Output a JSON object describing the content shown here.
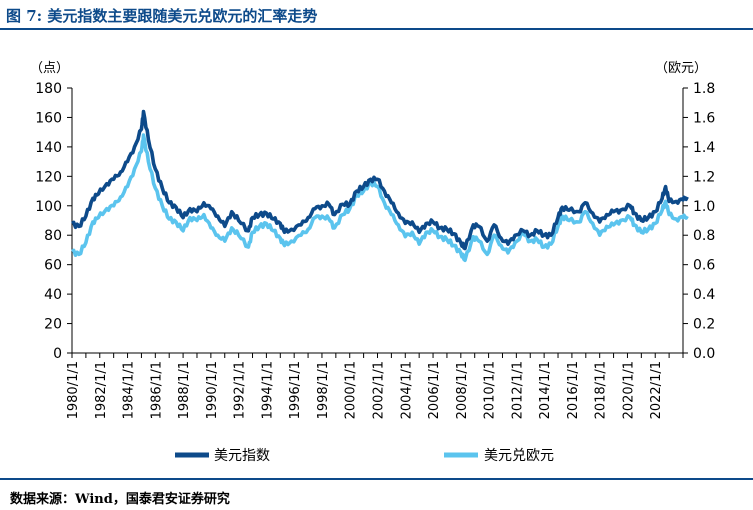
{
  "header": {
    "title": "图 7:  美元指数主要跟随美元兑欧元的汇率走势"
  },
  "footer": {
    "source": "数据来源：Wind，国泰君安证券研究"
  },
  "chart_data": {
    "type": "line",
    "title": "",
    "xlabel": "",
    "left_axis": {
      "unit_label": "（点）",
      "ylim": [
        0,
        180
      ],
      "ticks": [
        "0",
        "20",
        "40",
        "60",
        "80",
        "100",
        "120",
        "140",
        "160",
        "180"
      ]
    },
    "right_axis": {
      "unit_label": "（欧元）",
      "ylim": [
        0.0,
        1.8
      ],
      "ticks": [
        "0.0",
        "0.2",
        "0.4",
        "0.6",
        "0.8",
        "1.0",
        "1.2",
        "1.4",
        "1.6",
        "1.8"
      ]
    },
    "x_tick_labels": [
      "1980/1/1",
      "1982/1/1",
      "1984/1/1",
      "1986/1/1",
      "1988/1/1",
      "1990/1/1",
      "1992/1/1",
      "1994/1/1",
      "1996/1/1",
      "1998/1/1",
      "2000/1/1",
      "2002/1/1",
      "2004/1/1",
      "2006/1/1",
      "2008/1/1",
      "2010/1/1",
      "2012/1/1",
      "2014/1/1",
      "2016/1/1",
      "2018/1/1",
      "2020/1/1",
      "2022/1/1"
    ],
    "x_start_year": 1980,
    "x_end_year": 2024,
    "grid": false,
    "legend_position": "bottom",
    "series": [
      {
        "name": "美元指数",
        "axis": "left",
        "color": "#0d4a8a",
        "points": [
          [
            1980.0,
            88
          ],
          [
            1980.5,
            86
          ],
          [
            1981.0,
            93
          ],
          [
            1981.5,
            105
          ],
          [
            1981.9,
            108
          ],
          [
            1982.5,
            115
          ],
          [
            1983.0,
            118
          ],
          [
            1983.5,
            123
          ],
          [
            1984.0,
            130
          ],
          [
            1984.5,
            140
          ],
          [
            1985.0,
            152
          ],
          [
            1985.15,
            164
          ],
          [
            1985.5,
            145
          ],
          [
            1986.0,
            125
          ],
          [
            1986.5,
            112
          ],
          [
            1987.0,
            102
          ],
          [
            1987.5,
            99
          ],
          [
            1988.0,
            92
          ],
          [
            1988.5,
            98
          ],
          [
            1989.0,
            96
          ],
          [
            1989.5,
            102
          ],
          [
            1990.0,
            98
          ],
          [
            1990.5,
            93
          ],
          [
            1991.0,
            86
          ],
          [
            1991.5,
            96
          ],
          [
            1992.0,
            90
          ],
          [
            1992.7,
            83
          ],
          [
            1993.0,
            92
          ],
          [
            1993.5,
            94
          ],
          [
            1994.0,
            95
          ],
          [
            1994.5,
            91
          ],
          [
            1995.0,
            88
          ],
          [
            1995.3,
            82
          ],
          [
            1995.8,
            84
          ],
          [
            1996.5,
            87
          ],
          [
            1997.0,
            92
          ],
          [
            1997.5,
            98
          ],
          [
            1998.0,
            100
          ],
          [
            1998.5,
            101
          ],
          [
            1998.9,
            94
          ],
          [
            1999.5,
            101
          ],
          [
            2000.0,
            101
          ],
          [
            2000.5,
            110
          ],
          [
            2001.0,
            113
          ],
          [
            2001.5,
            118
          ],
          [
            2002.0,
            118
          ],
          [
            2002.5,
            110
          ],
          [
            2003.0,
            102
          ],
          [
            2003.5,
            95
          ],
          [
            2004.0,
            88
          ],
          [
            2004.5,
            89
          ],
          [
            2005.0,
            82
          ],
          [
            2005.5,
            88
          ],
          [
            2006.0,
            89
          ],
          [
            2006.5,
            85
          ],
          [
            2007.0,
            84
          ],
          [
            2007.5,
            81
          ],
          [
            2008.0,
            75
          ],
          [
            2008.3,
            71
          ],
          [
            2008.9,
            87
          ],
          [
            2009.3,
            86
          ],
          [
            2009.9,
            76
          ],
          [
            2010.4,
            87
          ],
          [
            2010.9,
            78
          ],
          [
            2011.4,
            74
          ],
          [
            2011.9,
            80
          ],
          [
            2012.5,
            83
          ],
          [
            2013.0,
            80
          ],
          [
            2013.5,
            83
          ],
          [
            2014.0,
            80
          ],
          [
            2014.5,
            80
          ],
          [
            2015.0,
            92
          ],
          [
            2015.3,
            99
          ],
          [
            2015.8,
            97
          ],
          [
            2016.5,
            96
          ],
          [
            2016.95,
            102
          ],
          [
            2017.5,
            95
          ],
          [
            2018.0,
            89
          ],
          [
            2018.5,
            94
          ],
          [
            2019.0,
            96
          ],
          [
            2019.5,
            97
          ],
          [
            2020.2,
            100
          ],
          [
            2020.5,
            95
          ],
          [
            2021.0,
            90
          ],
          [
            2021.5,
            92
          ],
          [
            2022.0,
            96
          ],
          [
            2022.5,
            105
          ],
          [
            2022.75,
            113
          ],
          [
            2023.0,
            103
          ],
          [
            2023.5,
            103
          ],
          [
            2024.0,
            104
          ],
          [
            2024.3,
            106
          ]
        ]
      },
      {
        "name": "美元兑欧元",
        "axis": "right",
        "color": "#5bc4ee",
        "points": [
          [
            1980.0,
            0.69
          ],
          [
            1980.5,
            0.67
          ],
          [
            1981.0,
            0.75
          ],
          [
            1981.5,
            0.89
          ],
          [
            1981.9,
            0.92
          ],
          [
            1982.5,
            0.98
          ],
          [
            1983.0,
            1.0
          ],
          [
            1983.5,
            1.06
          ],
          [
            1984.0,
            1.13
          ],
          [
            1984.5,
            1.25
          ],
          [
            1985.0,
            1.37
          ],
          [
            1985.15,
            1.48
          ],
          [
            1985.5,
            1.3
          ],
          [
            1986.0,
            1.12
          ],
          [
            1986.5,
            1.0
          ],
          [
            1987.0,
            0.91
          ],
          [
            1987.5,
            0.89
          ],
          [
            1988.0,
            0.83
          ],
          [
            1988.5,
            0.92
          ],
          [
            1989.0,
            0.9
          ],
          [
            1989.5,
            0.94
          ],
          [
            1990.0,
            0.85
          ],
          [
            1990.5,
            0.8
          ],
          [
            1991.0,
            0.76
          ],
          [
            1991.5,
            0.85
          ],
          [
            1992.0,
            0.8
          ],
          [
            1992.7,
            0.72
          ],
          [
            1993.0,
            0.82
          ],
          [
            1993.5,
            0.86
          ],
          [
            1994.0,
            0.88
          ],
          [
            1994.5,
            0.83
          ],
          [
            1995.0,
            0.78
          ],
          [
            1995.3,
            0.73
          ],
          [
            1995.8,
            0.76
          ],
          [
            1996.5,
            0.8
          ],
          [
            1997.0,
            0.84
          ],
          [
            1997.5,
            0.92
          ],
          [
            1998.0,
            0.93
          ],
          [
            1998.5,
            0.91
          ],
          [
            1998.9,
            0.85
          ],
          [
            1999.5,
            0.94
          ],
          [
            2000.0,
            0.98
          ],
          [
            2000.5,
            1.07
          ],
          [
            2001.0,
            1.1
          ],
          [
            2001.5,
            1.16
          ],
          [
            2002.0,
            1.13
          ],
          [
            2002.5,
            1.02
          ],
          [
            2003.0,
            0.94
          ],
          [
            2003.5,
            0.87
          ],
          [
            2004.0,
            0.79
          ],
          [
            2004.5,
            0.82
          ],
          [
            2005.0,
            0.74
          ],
          [
            2005.5,
            0.82
          ],
          [
            2006.0,
            0.83
          ],
          [
            2006.5,
            0.79
          ],
          [
            2007.0,
            0.77
          ],
          [
            2007.5,
            0.73
          ],
          [
            2008.0,
            0.68
          ],
          [
            2008.3,
            0.63
          ],
          [
            2008.9,
            0.79
          ],
          [
            2009.3,
            0.76
          ],
          [
            2009.9,
            0.67
          ],
          [
            2010.4,
            0.8
          ],
          [
            2010.9,
            0.73
          ],
          [
            2011.4,
            0.68
          ],
          [
            2011.9,
            0.75
          ],
          [
            2012.5,
            0.81
          ],
          [
            2013.0,
            0.76
          ],
          [
            2013.5,
            0.77
          ],
          [
            2014.0,
            0.72
          ],
          [
            2014.5,
            0.74
          ],
          [
            2015.0,
            0.86
          ],
          [
            2015.3,
            0.93
          ],
          [
            2015.8,
            0.9
          ],
          [
            2016.5,
            0.89
          ],
          [
            2016.95,
            0.96
          ],
          [
            2017.5,
            0.88
          ],
          [
            2018.0,
            0.8
          ],
          [
            2018.5,
            0.86
          ],
          [
            2019.0,
            0.87
          ],
          [
            2019.5,
            0.9
          ],
          [
            2020.2,
            0.92
          ],
          [
            2020.5,
            0.87
          ],
          [
            2021.0,
            0.82
          ],
          [
            2021.5,
            0.84
          ],
          [
            2022.0,
            0.88
          ],
          [
            2022.5,
            0.97
          ],
          [
            2022.75,
            1.03
          ],
          [
            2023.0,
            0.94
          ],
          [
            2023.5,
            0.91
          ],
          [
            2024.0,
            0.92
          ],
          [
            2024.3,
            0.93
          ]
        ]
      }
    ]
  }
}
